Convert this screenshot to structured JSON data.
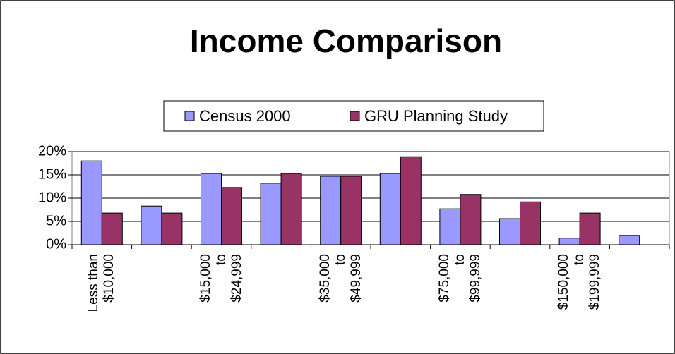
{
  "chart_data": {
    "type": "bar",
    "title": "Income Comparison",
    "categories": [
      "Less than\n$10,000",
      null,
      "$15,000\nto\n$24,999",
      null,
      "$35,000\nto\n$49,999",
      null,
      "$75,000\nto\n$99,999",
      null,
      "$150,000\nto\n$199,999",
      null
    ],
    "series": [
      {
        "name": "Census 2000",
        "color": "#9999ff",
        "values": [
          18,
          8.3,
          15.3,
          13.2,
          14.7,
          15.3,
          7.7,
          5.6,
          1.4,
          2.0
        ]
      },
      {
        "name": "GRU Planning Study",
        "color": "#993366",
        "values": [
          6.8,
          6.8,
          12.3,
          15.3,
          14.7,
          18.9,
          10.8,
          9.2,
          6.8,
          null
        ]
      }
    ],
    "ylim": [
      0,
      20
    ],
    "yticks": [
      {
        "value": 0,
        "label": "0%"
      },
      {
        "value": 5,
        "label": "5%"
      },
      {
        "value": 10,
        "label": "10%"
      },
      {
        "value": 15,
        "label": "15%"
      },
      {
        "value": 20,
        "label": "20%"
      }
    ],
    "grid": true
  }
}
